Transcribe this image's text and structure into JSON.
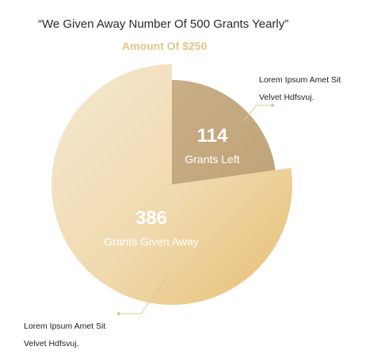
{
  "title": "“We Given Away Number Of 500 Grants Yearly”",
  "subtitle": "Amount Of $250",
  "chart_data": {
    "type": "pie",
    "title": "“We Given Away Number Of 500 Grants Yearly”",
    "subtitle": "Amount Of $250",
    "total": 500,
    "slices": [
      {
        "value": 114,
        "label": "Grants Left",
        "color": "#c9b089"
      },
      {
        "value": 386,
        "label": "Grants Given Away",
        "color": "#ebcf96"
      }
    ]
  },
  "annotations": {
    "top": [
      "Lorem Ipsum Amet Sit",
      "Velvet Hdfsvuj."
    ],
    "bottom": [
      "Lorem Ipsum Amet Sit",
      "Velvet Hdfsvuj."
    ]
  },
  "colors": {
    "accent": "#e2c48a",
    "leader": "#e3c894"
  }
}
